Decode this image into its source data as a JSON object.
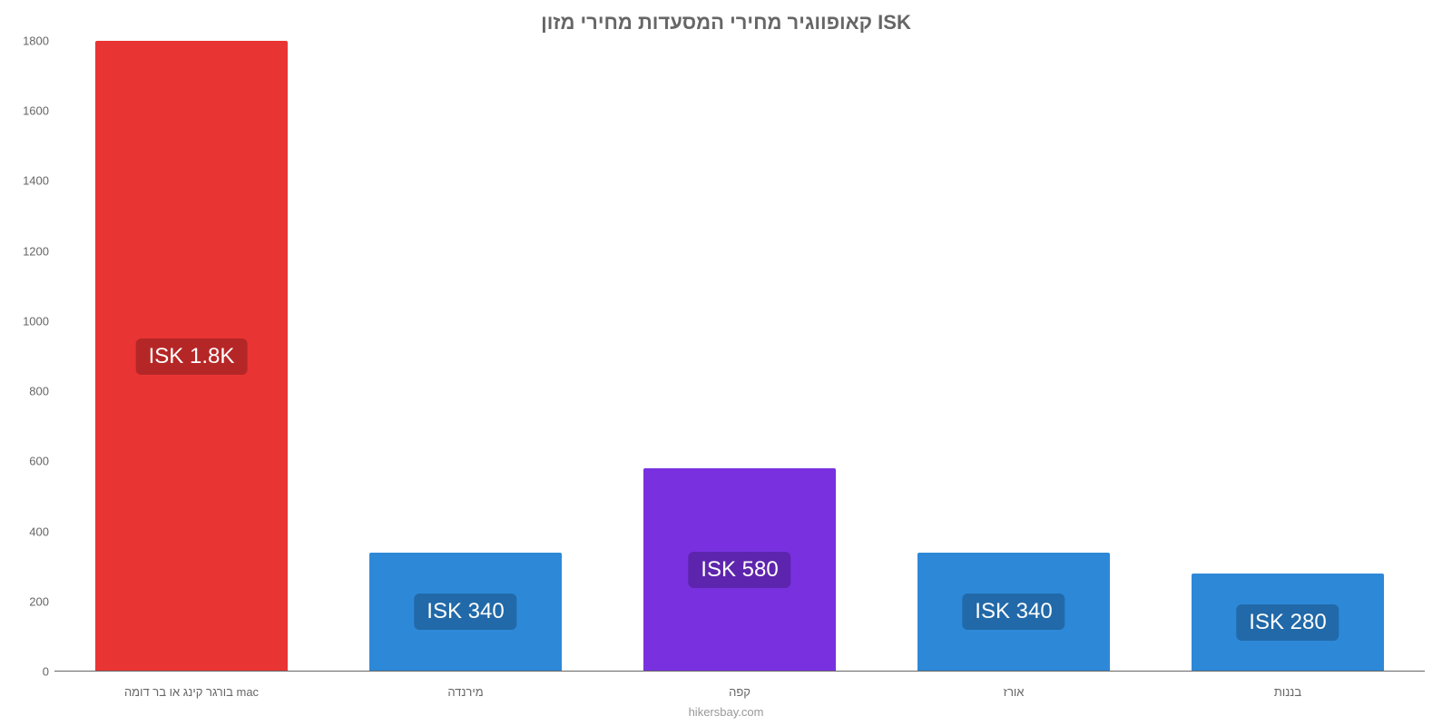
{
  "chart": {
    "type": "bar",
    "title": "קאופווגיר מחירי המסעדות מחירי מזון ISK",
    "attribution": "hikersbay.com",
    "title_color": "#666666",
    "title_fontsize": 22,
    "background_color": "#ffffff",
    "axis_color": "#666666",
    "axis_fontsize": 13,
    "ylim": [
      0,
      1800
    ],
    "ytick_step": 200,
    "yticks": [
      0,
      200,
      400,
      600,
      800,
      1000,
      1200,
      1400,
      1600,
      1800
    ],
    "bar_width_ratio": 0.7,
    "categories": [
      "בורגר קינג או בר דומה mac",
      "מירנדה",
      "קפה",
      "אורז",
      "בננות"
    ],
    "values": [
      1800,
      340,
      580,
      340,
      280
    ],
    "value_labels": [
      "ISK 1.8K",
      "ISK 340",
      "ISK 580",
      "ISK 340",
      "ISK 280"
    ],
    "bar_colors": [
      "#e93434",
      "#2d88d8",
      "#7931e0",
      "#2d88d8",
      "#2d88d8"
    ],
    "label_bg_colors": [
      "#b52727",
      "#2169a8",
      "#5d25ad",
      "#2169a8",
      "#2169a8"
    ],
    "label_fontsize": 24,
    "label_text_color": "#ffffff"
  }
}
